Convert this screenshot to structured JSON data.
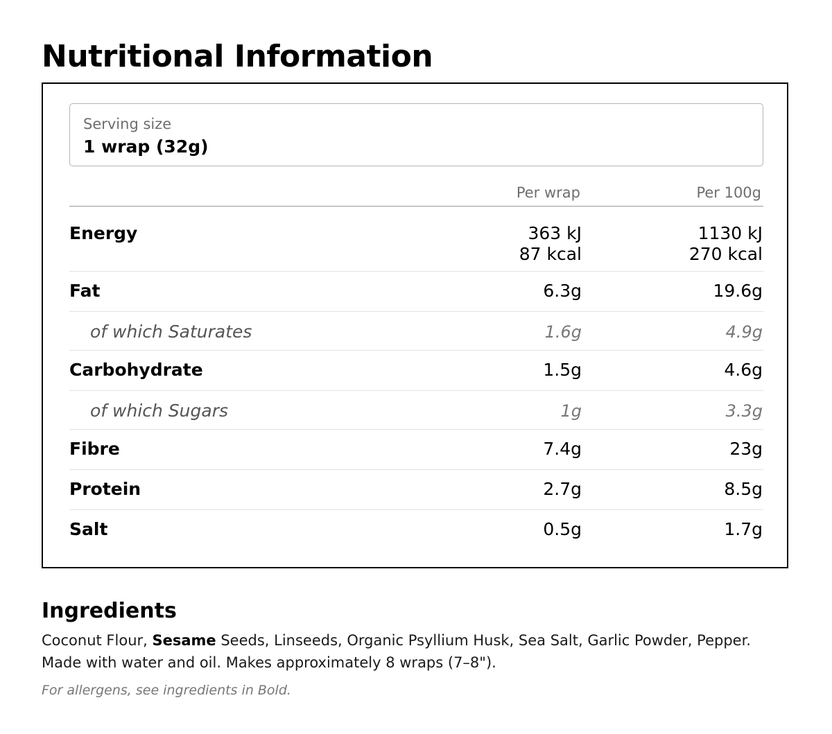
{
  "title": "Nutritional Information",
  "serving": {
    "label": "Serving size",
    "value": "1 wrap (32g)"
  },
  "columns": {
    "per_serving": "Per wrap",
    "per_100g": "Per 100g"
  },
  "nutrients": {
    "energy": {
      "label": "Energy",
      "per_serving_kj": "363 kJ",
      "per_serving_kcal": "87 kcal",
      "per_100g_kj": "1130 kJ",
      "per_100g_kcal": "270 kcal"
    },
    "fat": {
      "label": "Fat",
      "per_serving": "6.3g",
      "per_100g": "19.6g"
    },
    "saturates": {
      "label": "of which Saturates",
      "per_serving": "1.6g",
      "per_100g": "4.9g"
    },
    "carbohydrate": {
      "label": "Carbohydrate",
      "per_serving": "1.5g",
      "per_100g": "4.6g"
    },
    "sugars": {
      "label": "of which Sugars",
      "per_serving": "1g",
      "per_100g": "3.3g"
    },
    "fibre": {
      "label": "Fibre",
      "per_serving": "7.4g",
      "per_100g": "23g"
    },
    "protein": {
      "label": "Protein",
      "per_serving": "2.7g",
      "per_100g": "8.5g"
    },
    "salt": {
      "label": "Salt",
      "per_serving": "0.5g",
      "per_100g": "1.7g"
    }
  },
  "ingredients": {
    "title": "Ingredients",
    "text_before_allergen": "Coconut Flour, ",
    "allergen": "Sesame",
    "text_after_allergen": " Seeds, Linseeds, Organic Psyllium Husk, Sea Salt, Garlic Powder, Pepper. Made with water and oil. Makes approximately 8 wraps (7–8\").",
    "allergen_note": "For allergens, see ingredients in Bold."
  },
  "colors": {
    "text": "#000000",
    "muted": "#6e6e6e",
    "sub_text": "#555555",
    "border": "#000000",
    "rule": "#e2e2e2"
  }
}
